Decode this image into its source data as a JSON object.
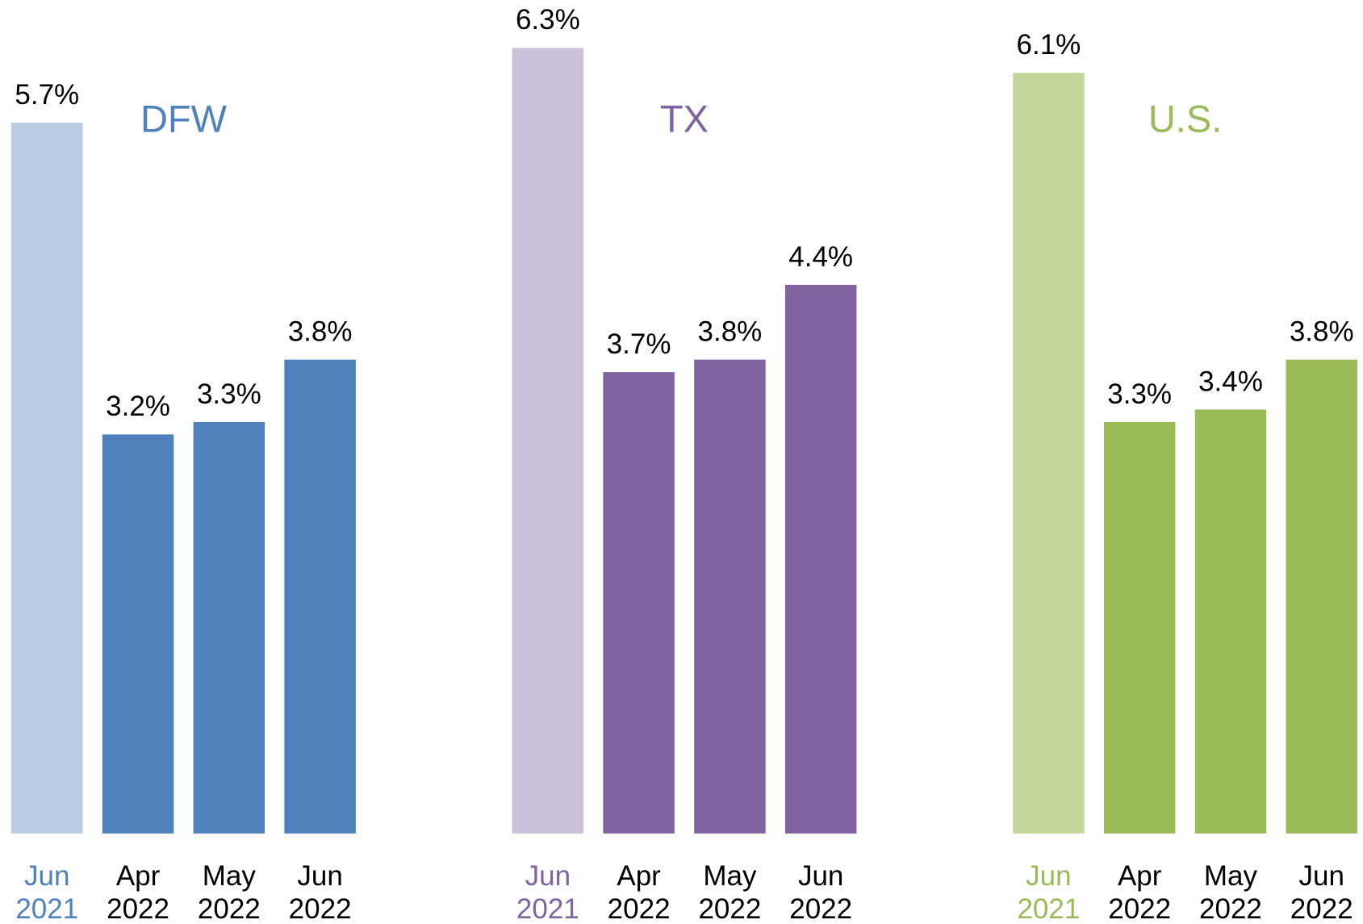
{
  "chart_data": [
    {
      "type": "bar",
      "title": "DFW",
      "title_color": "#4f81bd",
      "categories": [
        [
          "Jun",
          "2021"
        ],
        [
          "Apr",
          "2022"
        ],
        [
          "May",
          "2022"
        ],
        [
          "Jun",
          "2022"
        ]
      ],
      "category_colors": [
        "#4f81bd",
        "#000000",
        "#000000",
        "#000000"
      ],
      "values": [
        5.7,
        3.2,
        3.3,
        3.8
      ],
      "value_labels": [
        "5.7%",
        "3.2%",
        "3.3%",
        "3.8%"
      ],
      "colors": [
        "#b9cde5",
        "#4f81bd",
        "#4f81bd",
        "#4f81bd"
      ],
      "ylim": [
        0,
        6.3
      ]
    },
    {
      "type": "bar",
      "title": "TX",
      "title_color": "#8064a2",
      "categories": [
        [
          "Jun",
          "2021"
        ],
        [
          "Apr",
          "2022"
        ],
        [
          "May",
          "2022"
        ],
        [
          "Jun",
          "2022"
        ]
      ],
      "category_colors": [
        "#8064a2",
        "#000000",
        "#000000",
        "#000000"
      ],
      "values": [
        6.3,
        3.7,
        3.8,
        4.4
      ],
      "value_labels": [
        "6.3%",
        "3.7%",
        "3.8%",
        "4.4%"
      ],
      "colors": [
        "#ccc1da",
        "#8064a2",
        "#8064a2",
        "#8064a2"
      ],
      "ylim": [
        0,
        6.3
      ]
    },
    {
      "type": "bar",
      "title": "U.S.",
      "title_color": "#9bbb59",
      "categories": [
        [
          "Jun",
          "2021"
        ],
        [
          "Apr",
          "2022"
        ],
        [
          "May",
          "2022"
        ],
        [
          "Jun",
          "2022"
        ]
      ],
      "category_colors": [
        "#9bbb59",
        "#000000",
        "#000000",
        "#000000"
      ],
      "values": [
        6.1,
        3.3,
        3.4,
        3.8
      ],
      "value_labels": [
        "6.1%",
        "3.3%",
        "3.4%",
        "3.8%"
      ],
      "colors": [
        "#c3d69b",
        "#9bbb59",
        "#9bbb59",
        "#9bbb59"
      ],
      "ylim": [
        0,
        6.3
      ]
    }
  ]
}
